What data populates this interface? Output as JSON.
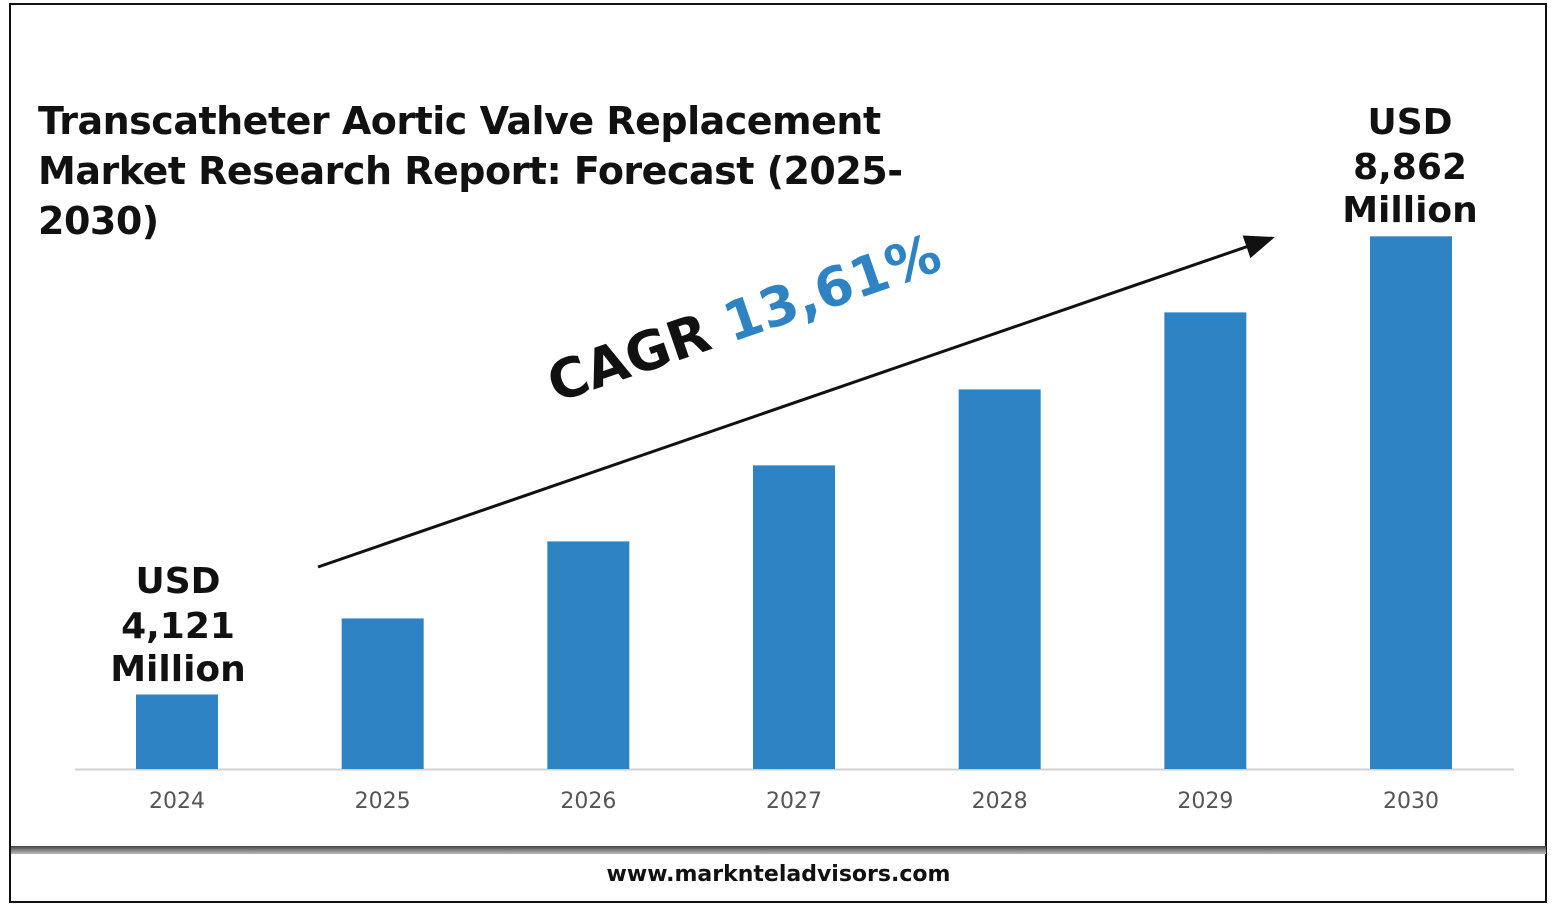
{
  "title": "Transcatheter Aortic Valve Replacement Market Research Report: Forecast (2025-2030)",
  "footer": "www.marknteladvisors.com",
  "annotations": {
    "start": {
      "line1": "USD",
      "line2": "4,121",
      "line3": "Million"
    },
    "end": {
      "line1": "USD",
      "line2": "8,862",
      "line3": "Million"
    },
    "cagr_label": "CAGR",
    "cagr_value": "13,61%"
  },
  "colors": {
    "bar": "#2E83C4",
    "cagr_value": "#2E83C4",
    "axis": "#d0d0d0"
  },
  "chart_data": {
    "type": "bar",
    "title": "Transcatheter Aortic Valve Replacement Market Research Report: Forecast (2025-2030)",
    "categories": [
      "2024",
      "2025",
      "2026",
      "2027",
      "2028",
      "2029",
      "2030"
    ],
    "values": [
      4121,
      4908,
      5705,
      6492,
      7278,
      8075,
      8862
    ],
    "unit": "USD Million",
    "xlabel": "",
    "ylabel": "",
    "ylim": [
      3350,
      9000
    ],
    "grid": false,
    "legend": "none",
    "y_axis_visible": false
  }
}
